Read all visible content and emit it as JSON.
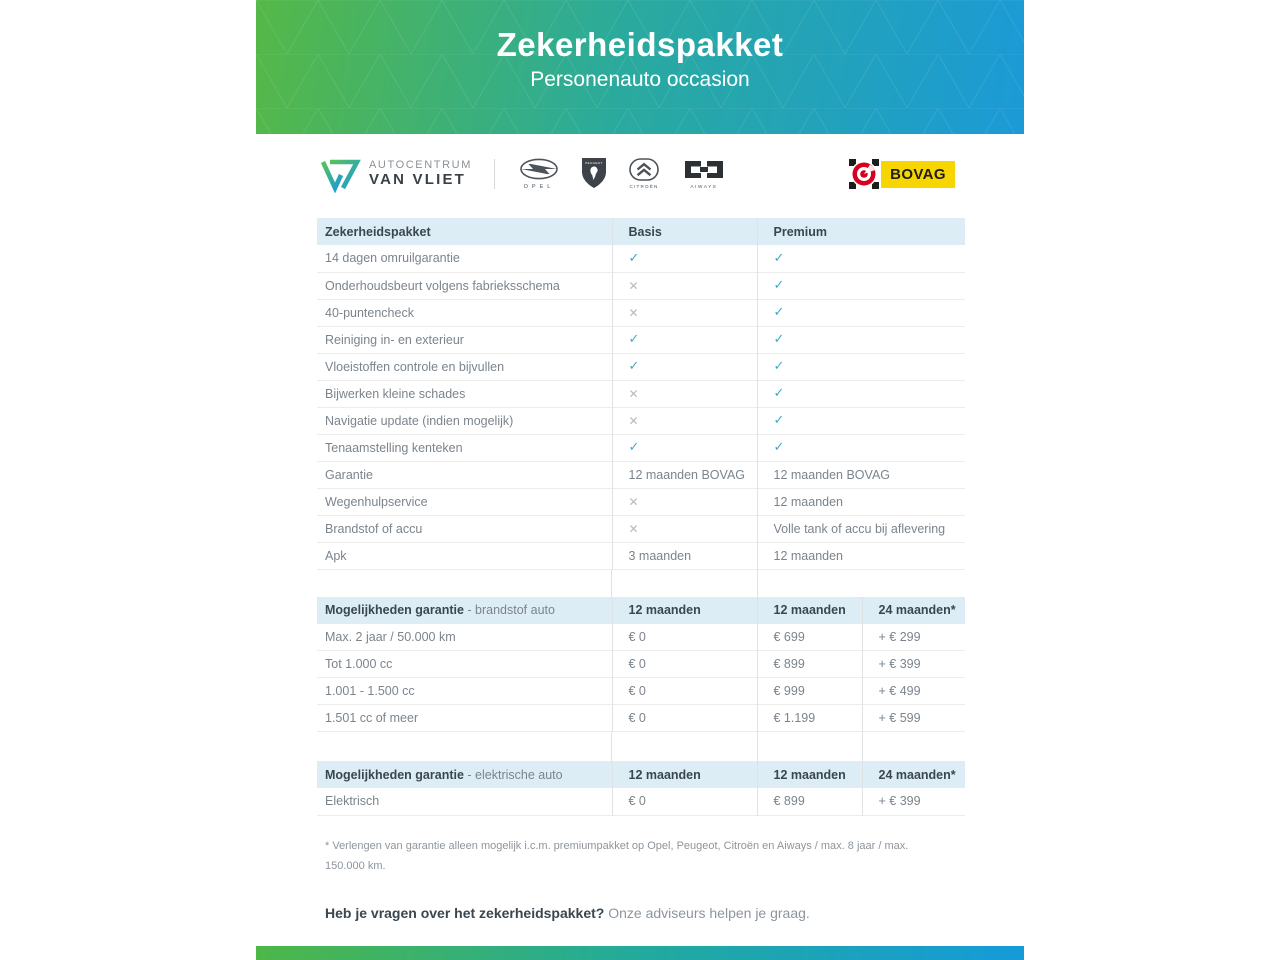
{
  "header": {
    "title": "Zekerheidspakket",
    "subtitle": "Personenauto occasion"
  },
  "branding": {
    "dealer_line1": "AUTOCENTRUM",
    "dealer_line2": "VAN VLIET",
    "brands": {
      "opel": "OPEL",
      "peugeot": "PEUGEOT",
      "citroen": "CITROËN",
      "aiways": "AIWAYS"
    },
    "bovag": "BOVAG"
  },
  "comparison": {
    "headers": [
      "Zekerheidspakket",
      "Basis",
      "Premium"
    ],
    "rows": [
      [
        "14 dagen omruilgarantie",
        "check",
        "check"
      ],
      [
        "Onderhoudsbeurt volgens fabrieksschema",
        "cross",
        "check"
      ],
      [
        "40-puntencheck",
        "cross",
        "check"
      ],
      [
        "Reiniging in- en exterieur",
        "check",
        "check"
      ],
      [
        "Vloeistoffen controle en bijvullen",
        "check",
        "check"
      ],
      [
        "Bijwerken kleine schades",
        "cross",
        "check"
      ],
      [
        "Navigatie update (indien mogelijk)",
        "cross",
        "check"
      ],
      [
        "Tenaamstelling kenteken",
        "check",
        "check"
      ],
      [
        "Garantie",
        "12 maanden BOVAG",
        "12 maanden BOVAG"
      ],
      [
        "Wegenhulpservice",
        "cross",
        "12 maanden"
      ],
      [
        "Brandstof of accu",
        "cross",
        "Volle tank of accu bij aflevering"
      ],
      [
        "Apk",
        "3 maanden",
        "12 maanden"
      ]
    ]
  },
  "warranty_fuel": {
    "title_bold": "Mogelijkheden garantie",
    "title_rest": "- brandstof auto",
    "headers": [
      "12 maanden",
      "12 maanden",
      "24 maanden*"
    ],
    "rows": [
      [
        "Max. 2 jaar / 50.000 km",
        "€ 0",
        "€ 699",
        "+ € 299"
      ],
      [
        "Tot 1.000 cc",
        "€ 0",
        "€ 899",
        "+ € 399"
      ],
      [
        "1.001 - 1.500 cc",
        "€ 0",
        "€ 999",
        "+ € 499"
      ],
      [
        "1.501 cc of meer",
        "€ 0",
        "€ 1.199",
        "+ € 599"
      ]
    ]
  },
  "warranty_electric": {
    "title_bold": "Mogelijkheden garantie",
    "title_rest": "- elektrische auto",
    "headers": [
      "12 maanden",
      "12 maanden",
      "24 maanden*"
    ],
    "rows": [
      [
        "Elektrisch",
        "€ 0",
        "€ 899",
        "+ € 399"
      ]
    ]
  },
  "footnote": "* Verlengen van garantie alleen mogelijk i.c.m. premiumpakket op Opel, Peugeot, Citroën en Aiways / max. 8 jaar / max. 150.000 km.",
  "question": {
    "bold": "Heb je vragen over het zekerheidspakket?",
    "rest": "Onze adviseurs helpen je graag."
  },
  "colors": {
    "accent_green": "#55b847",
    "accent_blue": "#1b9ad7",
    "check": "#3fa9c9",
    "cross": "#b6bbc0",
    "table_header_bg": "#ddedf6",
    "bovag_yellow": "#f7d600"
  }
}
